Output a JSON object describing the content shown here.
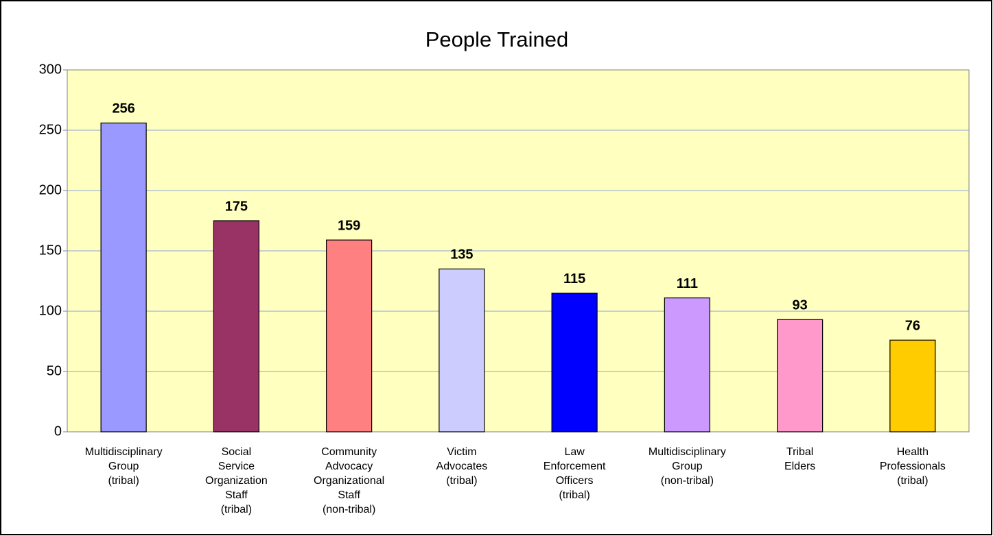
{
  "chart_data": {
    "type": "bar",
    "title": "People Trained",
    "categories": [
      "Multidisciplinary\nGroup\n(tribal)",
      "Social\nService\nOrganization\nStaff\n(tribal)",
      "Community\nAdvocacy\nOrganizational\nStaff\n(non-tribal)",
      "Victim\nAdvocates\n(tribal)",
      "Law\nEnforcement\nOfficers\n(tribal)",
      "Multidisciplinary\nGroup\n(non-tribal)",
      "Tribal\nElders",
      "Health\nProfessionals\n(tribal)"
    ],
    "values": [
      256,
      175,
      159,
      135,
      115,
      111,
      93,
      76
    ],
    "colors": [
      "#9999ff",
      "#993366",
      "#ff8080",
      "#ccccff",
      "#0000ff",
      "#cc99ff",
      "#ff99cc",
      "#ffcc00"
    ],
    "ylim": [
      0,
      300
    ],
    "yticks": [
      0,
      50,
      100,
      150,
      200,
      250,
      300
    ],
    "grid": true
  }
}
